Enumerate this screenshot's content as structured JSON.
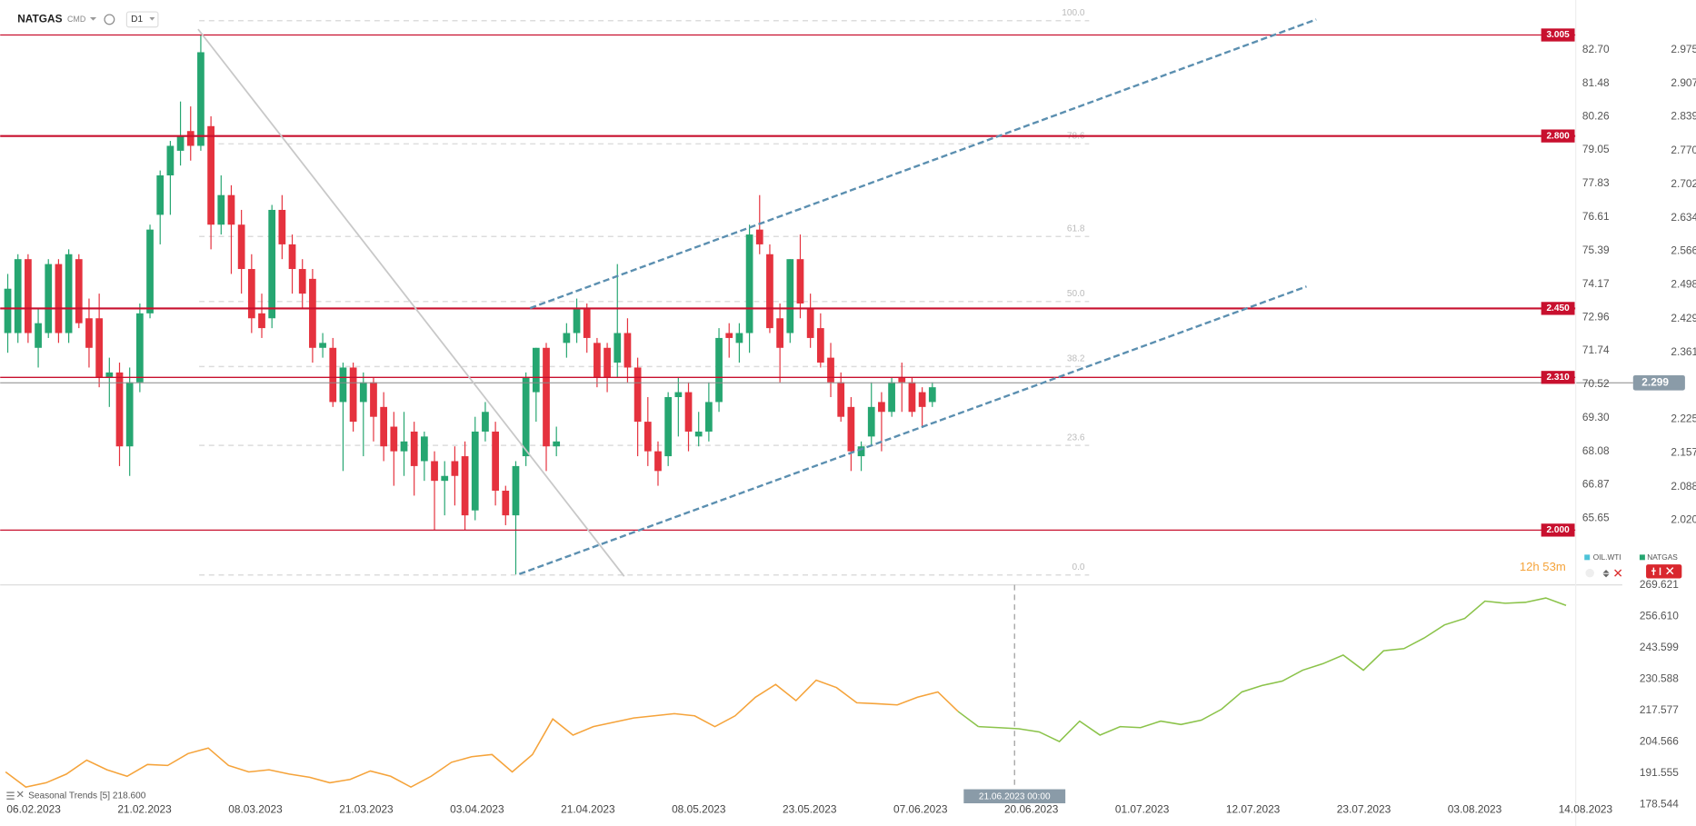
{
  "header": {
    "symbol": "NATGAS",
    "type": "CMD",
    "interval": "D1"
  },
  "chart_data": [
    {
      "type": "candlestick",
      "candles": [
        [
          2.4,
          2.52,
          2.36,
          2.49
        ],
        [
          2.4,
          2.56,
          2.38,
          2.55
        ],
        [
          2.55,
          2.56,
          2.38,
          2.4
        ],
        [
          2.37,
          2.45,
          2.33,
          2.42
        ],
        [
          2.4,
          2.55,
          2.39,
          2.54
        ],
        [
          2.54,
          2.55,
          2.38,
          2.4
        ],
        [
          2.4,
          2.57,
          2.38,
          2.56
        ],
        [
          2.55,
          2.56,
          2.41,
          2.42
        ],
        [
          2.43,
          2.47,
          2.33,
          2.37
        ],
        [
          2.43,
          2.48,
          2.29,
          2.31
        ],
        [
          2.31,
          2.35,
          2.25,
          2.32
        ],
        [
          2.32,
          2.34,
          2.13,
          2.17
        ],
        [
          2.17,
          2.33,
          2.11,
          2.3
        ],
        [
          2.3,
          2.46,
          2.28,
          2.44
        ],
        [
          2.44,
          2.62,
          2.43,
          2.61
        ],
        [
          2.64,
          2.73,
          2.58,
          2.72
        ],
        [
          2.72,
          2.79,
          2.64,
          2.78
        ],
        [
          2.77,
          2.87,
          2.74,
          2.8
        ],
        [
          2.81,
          2.86,
          2.75,
          2.78
        ],
        [
          2.78,
          3.005,
          2.77,
          2.97
        ],
        [
          2.82,
          2.84,
          2.57,
          2.62
        ],
        [
          2.62,
          2.72,
          2.6,
          2.68
        ],
        [
          2.68,
          2.7,
          2.52,
          2.62
        ],
        [
          2.62,
          2.65,
          2.48,
          2.53
        ],
        [
          2.53,
          2.56,
          2.4,
          2.43
        ],
        [
          2.44,
          2.48,
          2.39,
          2.41
        ],
        [
          2.43,
          2.66,
          2.41,
          2.65
        ],
        [
          2.65,
          2.68,
          2.55,
          2.58
        ],
        [
          2.58,
          2.6,
          2.48,
          2.53
        ],
        [
          2.53,
          2.55,
          2.45,
          2.48
        ],
        [
          2.51,
          2.53,
          2.34,
          2.37
        ],
        [
          2.37,
          2.4,
          2.35,
          2.38
        ],
        [
          2.37,
          2.39,
          2.25,
          2.26
        ],
        [
          2.26,
          2.34,
          2.12,
          2.33
        ],
        [
          2.33,
          2.34,
          2.2,
          2.22
        ],
        [
          2.26,
          2.32,
          2.15,
          2.3
        ],
        [
          2.3,
          2.31,
          2.18,
          2.23
        ],
        [
          2.25,
          2.28,
          2.14,
          2.17
        ],
        [
          2.21,
          2.24,
          2.09,
          2.16
        ],
        [
          2.16,
          2.24,
          2.11,
          2.18
        ],
        [
          2.2,
          2.22,
          2.07,
          2.13
        ],
        [
          2.14,
          2.2,
          2.1,
          2.19
        ],
        [
          2.14,
          2.16,
          2.0,
          2.1
        ],
        [
          2.1,
          2.14,
          2.03,
          2.11
        ],
        [
          2.14,
          2.17,
          2.05,
          2.11
        ],
        [
          2.15,
          2.18,
          2.0,
          2.03
        ],
        [
          2.04,
          2.23,
          2.02,
          2.2
        ],
        [
          2.2,
          2.26,
          2.18,
          2.24
        ],
        [
          2.2,
          2.22,
          2.05,
          2.08
        ],
        [
          2.08,
          2.09,
          2.01,
          2.03
        ],
        [
          2.03,
          2.14,
          1.91,
          2.13
        ],
        [
          2.15,
          2.32,
          2.13,
          2.31
        ],
        [
          2.28,
          2.37,
          2.22,
          2.37
        ],
        [
          2.37,
          2.38,
          2.12,
          2.17
        ],
        [
          2.17,
          2.21,
          2.15,
          2.18
        ],
        [
          2.38,
          2.42,
          2.35,
          2.4
        ],
        [
          2.4,
          2.47,
          2.38,
          2.45
        ],
        [
          2.45,
          2.46,
          2.36,
          2.39
        ],
        [
          2.38,
          2.39,
          2.29,
          2.31
        ],
        [
          2.37,
          2.38,
          2.28,
          2.31
        ],
        [
          2.34,
          2.54,
          2.31,
          2.4
        ],
        [
          2.4,
          2.43,
          2.3,
          2.33
        ],
        [
          2.33,
          2.35,
          2.15,
          2.22
        ],
        [
          2.22,
          2.27,
          2.13,
          2.16
        ],
        [
          2.16,
          2.18,
          2.09,
          2.12
        ],
        [
          2.15,
          2.28,
          2.13,
          2.27
        ],
        [
          2.27,
          2.31,
          2.19,
          2.28
        ],
        [
          2.28,
          2.3,
          2.16,
          2.2
        ],
        [
          2.19,
          2.24,
          2.17,
          2.2
        ],
        [
          2.2,
          2.3,
          2.18,
          2.26
        ],
        [
          2.26,
          2.41,
          2.24,
          2.39
        ],
        [
          2.4,
          2.42,
          2.35,
          2.39
        ],
        [
          2.38,
          2.42,
          2.34,
          2.4
        ],
        [
          2.4,
          2.62,
          2.36,
          2.6
        ],
        [
          2.61,
          2.68,
          2.56,
          2.58
        ],
        [
          2.56,
          2.58,
          2.4,
          2.41
        ],
        [
          2.43,
          2.46,
          2.3,
          2.37
        ],
        [
          2.4,
          2.55,
          2.38,
          2.55
        ],
        [
          2.55,
          2.6,
          2.43,
          2.46
        ],
        [
          2.45,
          2.48,
          2.37,
          2.39
        ],
        [
          2.41,
          2.44,
          2.33,
          2.34
        ],
        [
          2.35,
          2.38,
          2.27,
          2.3
        ],
        [
          2.3,
          2.32,
          2.22,
          2.23
        ],
        [
          2.25,
          2.27,
          2.12,
          2.16
        ],
        [
          2.15,
          2.18,
          2.12,
          2.17
        ],
        [
          2.19,
          2.3,
          2.17,
          2.25
        ],
        [
          2.26,
          2.28,
          2.16,
          2.24
        ],
        [
          2.24,
          2.31,
          2.23,
          2.3
        ],
        [
          2.31,
          2.34,
          2.24,
          2.3
        ],
        [
          2.3,
          2.31,
          2.23,
          2.24
        ],
        [
          2.28,
          2.29,
          2.21,
          2.25
        ],
        [
          2.26,
          2.3,
          2.25,
          2.29
        ]
      ],
      "up_color": "#26a671",
      "down_color": "#e5323e",
      "ylim": [
        1.891,
        3.076
      ],
      "yticks": [
        2.975,
        2.907,
        2.839,
        {
          "value": 2.77,
          "label": "2.770"
        },
        2.702,
        2.634,
        2.566,
        2.498,
        2.429,
        2.361,
        2.225,
        2.157,
        2.088,
        {
          "value": 2.02,
          "label": "2.020"
        }
      ],
      "y2lim": [
        63.26,
        84.51
      ],
      "y2ticks": [
        {
          "value": 82.7,
          "label": "82.70"
        },
        81.48,
        80.26,
        79.05,
        77.83,
        76.61,
        75.39,
        74.17,
        72.96,
        71.74,
        70.52,
        {
          "value": 69.3,
          "label": "69.30"
        },
        68.08,
        66.87,
        65.65
      ],
      "levels": [
        3.005,
        {
          "value": 2.8,
          "label": "2.800"
        },
        {
          "value": 2.45,
          "label": "2.450"
        },
        {
          "value": 2.31,
          "label": "2.310"
        },
        {
          "value": 2.0,
          "label": "2.000"
        }
      ],
      "level_color": "#c8102e",
      "last_price": 2.299,
      "fibonacci": {
        "levels": [
          3.034,
          2.784,
          2.596,
          2.464,
          2.332,
          2.172,
          1.909
        ],
        "labels": [
          "100.0",
          "78.6",
          "61.8",
          "50.0",
          "38.2",
          "23.6",
          "0.0"
        ]
      },
      "x_labels": [
        "06.02.2023",
        "21.02.2023",
        "08.03.2023",
        "21.03.2023",
        "03.04.2023",
        "21.04.2023",
        "08.05.2023",
        "23.05.2023",
        "07.06.2023",
        "20.06.2023",
        "01.07.2023",
        "12.07.2023",
        "23.07.2023",
        "03.08.2023",
        "14.08.2023"
      ],
      "legend": [
        "OIL.WTI",
        "NATGAS"
      ],
      "countdown": "12h 53m"
    },
    {
      "type": "line",
      "indicator": "Seasonal Trends",
      "period": "[5]",
      "indicator_value": {
        "value": 218.6,
        "label": "218.600"
      },
      "ylim": [
        177.63,
        270.97
      ],
      "yticks": [
        269.621,
        {
          "value": 256.61,
          "label": "256.610"
        },
        243.599,
        230.588,
        217.577,
        204.566,
        191.555,
        178.544
      ],
      "series": [
        {
          "color": "#f5a33a",
          "values": [
            192.0,
            185.7,
            187.5,
            191.1,
            196.9,
            192.9,
            190.2,
            195.1,
            194.7,
            199.6,
            201.9,
            194.7,
            192.0,
            192.9,
            191.1,
            189.8,
            187.5,
            188.9,
            192.4,
            190.2,
            185.7,
            190.2,
            196.0,
            198.3,
            199.2,
            192.0,
            199.2,
            214.0,
            207.3,
            210.8,
            212.6,
            214.4,
            215.3,
            216.2,
            215.3,
            210.8,
            215.3,
            223.0,
            228.3,
            221.6,
            230.1,
            227.0,
            220.7,
            220.3,
            219.8,
            223.0,
            225.2,
            217.1,
            null,
            null,
            null,
            null,
            null,
            null,
            null,
            null,
            null,
            null,
            null,
            null,
            null,
            null,
            null,
            null,
            null,
            null,
            null,
            null,
            null,
            null,
            null,
            null,
            null,
            null,
            null,
            null,
            null,
            null
          ]
        },
        {
          "color": "#8bc34a",
          "values": [
            null,
            null,
            null,
            null,
            null,
            null,
            null,
            null,
            null,
            null,
            null,
            null,
            null,
            null,
            null,
            null,
            null,
            null,
            null,
            null,
            null,
            null,
            null,
            null,
            null,
            null,
            null,
            null,
            null,
            null,
            null,
            null,
            null,
            null,
            null,
            null,
            null,
            null,
            null,
            null,
            null,
            null,
            null,
            null,
            null,
            null,
            null,
            null,
            210.8,
            210.4,
            209.9,
            208.6,
            204.6,
            213.1,
            207.3,
            210.8,
            210.4,
            213.1,
            211.7,
            213.5,
            218.0,
            225.2,
            227.9,
            229.7,
            234.2,
            236.9,
            240.5,
            234.2,
            242.3,
            243.2,
            247.6,
            253.0,
            255.7,
            262.9,
            262.0,
            262.4,
            264.2,
            261.1
          ]
        }
      ],
      "crosshair_label": "21.06.2023 00:00"
    }
  ]
}
